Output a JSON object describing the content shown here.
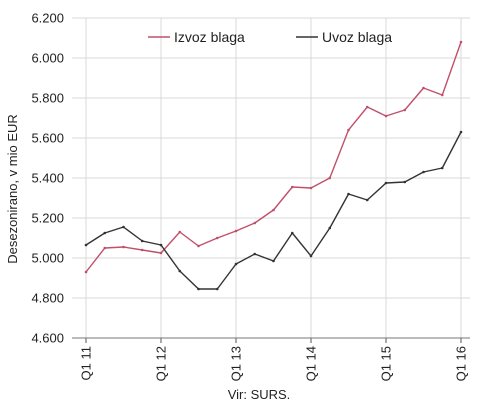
{
  "chart_data": {
    "type": "line",
    "ylabel": "Desezonirano, v mio EUR",
    "source": "Vir: SURS.",
    "ylim": [
      4600,
      6200
    ],
    "ytick_values": [
      4600,
      4800,
      5000,
      5200,
      5400,
      5600,
      5800,
      6000,
      6200
    ],
    "ytick_labels": [
      "4.600",
      "4.800",
      "5.000",
      "5.200",
      "5.400",
      "5.600",
      "5.800",
      "6.000",
      "6.200"
    ],
    "x": [
      "Q1 11",
      "Q2 11",
      "Q3 11",
      "Q4 11",
      "Q1 12",
      "Q2 12",
      "Q3 12",
      "Q4 12",
      "Q1 13",
      "Q2 13",
      "Q3 13",
      "Q4 13",
      "Q1 14",
      "Q2 14",
      "Q3 14",
      "Q4 14",
      "Q1 15",
      "Q2 15",
      "Q3 15",
      "Q4 15",
      "Q1 16"
    ],
    "xtick_labels": [
      "Q1 11",
      "Q1 12",
      "Q1 13",
      "Q1 14",
      "Q1 15",
      "Q1 16"
    ],
    "grid": true,
    "legend_position": "top",
    "series": [
      {
        "name": "Izvoz blaga",
        "color": "#c0506a",
        "values": [
          4930,
          5050,
          5055,
          5040,
          5025,
          5130,
          5060,
          5100,
          5135,
          5175,
          5240,
          5355,
          5350,
          5400,
          5640,
          5755,
          5710,
          5740,
          5850,
          5815,
          6080
        ]
      },
      {
        "name": "Uvoz blaga",
        "color": "#333333",
        "values": [
          5065,
          5125,
          5155,
          5085,
          5065,
          4935,
          4845,
          4845,
          4970,
          5020,
          4985,
          5125,
          5010,
          5150,
          5320,
          5290,
          5375,
          5380,
          5430,
          5450,
          5630
        ]
      }
    ]
  }
}
